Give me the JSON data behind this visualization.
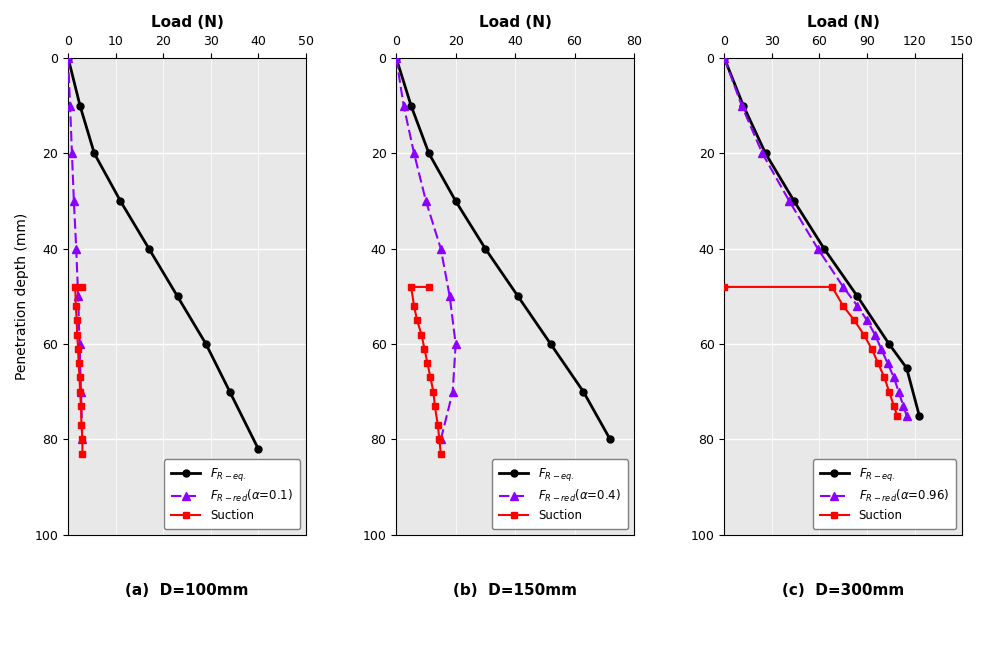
{
  "panels": [
    {
      "xlim": [
        0,
        50
      ],
      "xticks": [
        0,
        10,
        20,
        30,
        40,
        50
      ],
      "subtitle": "(a)  D=100mm",
      "alpha_label": "0.1",
      "freq_depth": [
        0,
        10,
        20,
        30,
        40,
        50,
        60,
        70,
        82
      ],
      "freq_load": [
        0,
        2.5,
        5.5,
        11,
        17,
        23,
        29,
        34,
        40
      ],
      "frred_depth": [
        0,
        10,
        20,
        30,
        40,
        50,
        60,
        70,
        80
      ],
      "frred_load": [
        0,
        0.4,
        0.8,
        1.2,
        1.6,
        2.0,
        2.3,
        2.7,
        3.0
      ],
      "suction_depth": [
        48,
        48,
        51,
        54,
        57,
        60,
        63,
        66,
        69,
        72,
        75,
        78,
        82
      ],
      "suction_load": [
        3.0,
        1.5,
        1.6,
        1.7,
        1.8,
        2.0,
        2.1,
        2.3,
        2.5,
        2.6,
        2.8,
        3.0,
        3.0
      ]
    },
    {
      "xlim": [
        0,
        80
      ],
      "xticks": [
        0,
        20,
        40,
        60,
        80
      ],
      "subtitle": "(b)  D=150mm",
      "alpha_label": "0.4",
      "freq_depth": [
        0,
        10,
        20,
        30,
        40,
        50,
        60,
        70,
        80
      ],
      "freq_load": [
        0,
        5,
        11,
        20,
        30,
        41,
        52,
        63,
        72
      ],
      "frred_depth": [
        0,
        10,
        20,
        30,
        40,
        50,
        60,
        65,
        80
      ],
      "frred_load": [
        0,
        2,
        5,
        9,
        14,
        18,
        20,
        20,
        15
      ],
      "suction_depth": [
        48,
        48,
        51,
        54,
        57,
        60,
        63,
        66,
        69,
        72,
        75,
        78,
        82
      ],
      "suction_load": [
        11.0,
        5.0,
        6.0,
        7.0,
        8.0,
        9.0,
        10.0,
        11.0,
        12.0,
        13.0,
        14.0,
        14.5,
        15.0
      ]
    },
    {
      "xlim": [
        0,
        150
      ],
      "xticks": [
        0,
        30,
        60,
        90,
        120,
        150
      ],
      "subtitle": "(c)  D=300mm",
      "alpha_label": "0.96",
      "freq_depth": [
        0,
        10,
        20,
        30,
        40,
        50,
        60,
        65,
        75
      ],
      "freq_load": [
        0,
        12,
        25,
        42,
        62,
        82,
        103,
        115,
        123
      ],
      "frred_depth": [
        0,
        10,
        20,
        30,
        40,
        50,
        55,
        60,
        65,
        70,
        75
      ],
      "frred_load": [
        0,
        10,
        22,
        37,
        55,
        73,
        82,
        90,
        96,
        100,
        102
      ],
      "suction_depth": [
        48,
        48,
        51,
        54,
        57,
        60,
        63,
        66,
        69,
        72,
        75
      ],
      "suction_load": [
        68,
        68,
        75,
        82,
        88,
        93,
        97,
        100,
        102,
        103,
        104
      ]
    }
  ],
  "freq_color": "#000000",
  "frred_color": "#8B00FF",
  "suction_color": "#FF0000",
  "bg_color": "#e8e8e8",
  "grid_color": "#ffffff",
  "ylabel": "Penetration depth (mm)",
  "xlabel": "Load (N)",
  "ylim": [
    100,
    0
  ],
  "yticks": [
    0,
    20,
    40,
    60,
    80,
    100
  ],
  "figsize": [
    9.89,
    6.47
  ],
  "dpi": 100
}
